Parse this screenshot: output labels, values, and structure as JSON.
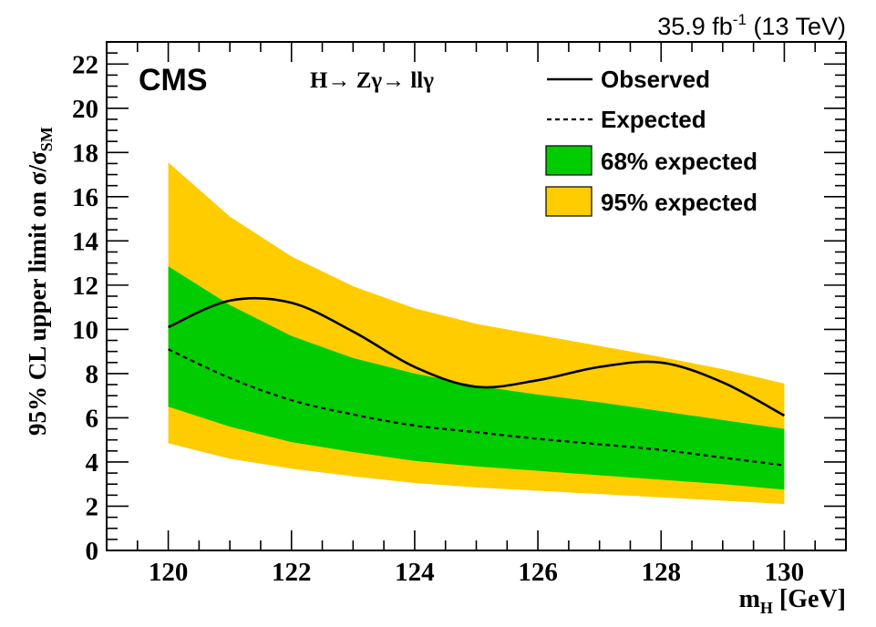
{
  "chart_data": {
    "type": "area",
    "lumi_label": "35.9 fb",
    "lumi_sup": "-1",
    "lumi_energy": "(13 TeV)",
    "experiment": "CMS",
    "process_label": "H→ Zγ→ llγ",
    "xlabel_main": "m",
    "xlabel_sub": "H",
    "xlabel_unit": "[GeV]",
    "ylabel": "95% CL upper limit on  σ/σ",
    "ylabel_sub": "SM",
    "xlim": [
      119,
      131
    ],
    "ylim": [
      0,
      23
    ],
    "xticks": [
      120,
      122,
      124,
      126,
      128,
      130
    ],
    "yticks": [
      0,
      2,
      4,
      6,
      8,
      10,
      12,
      14,
      16,
      18,
      20,
      22
    ],
    "x": [
      120,
      121,
      122,
      123,
      124,
      125,
      126,
      127,
      128,
      129,
      130
    ],
    "observed": [
      10.1,
      11.3,
      11.2,
      9.9,
      8.3,
      7.4,
      7.7,
      8.3,
      8.5,
      7.6,
      6.1
    ],
    "expected": [
      9.1,
      7.8,
      6.8,
      6.15,
      5.65,
      5.35,
      5.05,
      4.8,
      4.55,
      4.2,
      3.85
    ],
    "band68_low": [
      6.5,
      5.6,
      4.9,
      4.45,
      4.05,
      3.8,
      3.6,
      3.4,
      3.2,
      3.0,
      2.75
    ],
    "band68_high": [
      12.85,
      11.1,
      9.7,
      8.7,
      8.0,
      7.45,
      7.05,
      6.7,
      6.3,
      5.9,
      5.5
    ],
    "band95_low": [
      4.85,
      4.15,
      3.7,
      3.35,
      3.05,
      2.85,
      2.7,
      2.55,
      2.4,
      2.25,
      2.1
    ],
    "band95_high": [
      17.55,
      15.1,
      13.3,
      11.95,
      10.95,
      10.25,
      9.75,
      9.25,
      8.75,
      8.2,
      7.55
    ],
    "legend": {
      "placement": "top-right",
      "observed": "Observed",
      "expected": "Expected",
      "band68": "68% expected",
      "band95": "95% expected"
    },
    "colors": {
      "band68": "#00cc00",
      "band95": "#ffcc00",
      "line": "#000000"
    },
    "grid": false
  }
}
